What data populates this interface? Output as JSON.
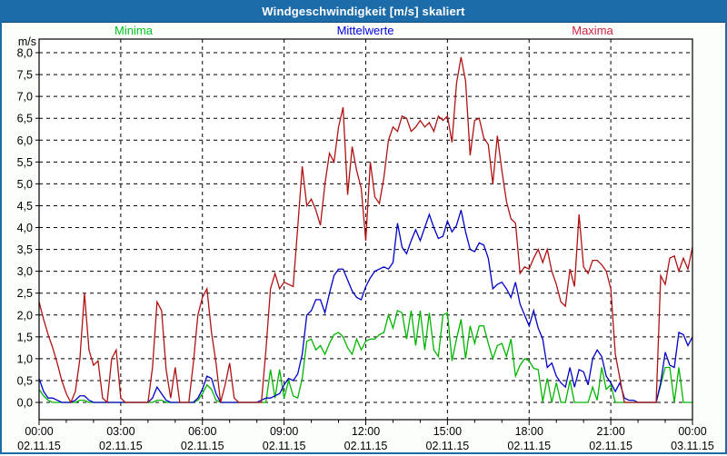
{
  "window": {
    "title": "Windgeschwindigkeit [m/s] skaliert"
  },
  "legend": [
    {
      "label": "Minima",
      "color": "#00c322"
    },
    {
      "label": "Mittelwerte",
      "color": "#0000e0"
    },
    {
      "label": "Maxima",
      "color": "#cc2244"
    }
  ],
  "chart_data": {
    "type": "line",
    "title": "Windgeschwindigkeit [m/s] skaliert",
    "ylabel": "m/s",
    "ylim": [
      -0.4,
      8.3
    ],
    "xlim_hours": [
      0,
      24
    ],
    "grid": "dashed",
    "legend_position": "top",
    "y_ticks": [
      {
        "value": 8.0,
        "label": "8,0"
      },
      {
        "value": 7.5,
        "label": "7,5"
      },
      {
        "value": 7.0,
        "label": "7,0"
      },
      {
        "value": 6.5,
        "label": "6,5"
      },
      {
        "value": 6.0,
        "label": "6,0"
      },
      {
        "value": 5.5,
        "label": "5,5"
      },
      {
        "value": 5.0,
        "label": "5,0"
      },
      {
        "value": 4.5,
        "label": "4,5"
      },
      {
        "value": 4.0,
        "label": "4,0"
      },
      {
        "value": 3.5,
        "label": "3,5"
      },
      {
        "value": 3.0,
        "label": "3,0"
      },
      {
        "value": 2.5,
        "label": "2,5"
      },
      {
        "value": 2.0,
        "label": "2,0"
      },
      {
        "value": 1.5,
        "label": "1,5"
      },
      {
        "value": 1.0,
        "label": "1,0"
      },
      {
        "value": 0.5,
        "label": "0,5"
      },
      {
        "value": 0.0,
        "label": "0,0"
      }
    ],
    "x_ticks": [
      {
        "hour": 0,
        "time": "00:00",
        "date": "02.11.15"
      },
      {
        "hour": 3,
        "time": "03:00",
        "date": "02.11.15"
      },
      {
        "hour": 6,
        "time": "06:00",
        "date": "02.11.15"
      },
      {
        "hour": 9,
        "time": "09:00",
        "date": "02.11.15"
      },
      {
        "hour": 12,
        "time": "12:00",
        "date": "02.11.15"
      },
      {
        "hour": 15,
        "time": "15:00",
        "date": "02.11.15"
      },
      {
        "hour": 18,
        "time": "18:00",
        "date": "02.11.15"
      },
      {
        "hour": 21,
        "time": "21:00",
        "date": "02.11.15"
      },
      {
        "hour": 24,
        "time": "00:00",
        "date": "03.11.15"
      }
    ],
    "x_minor_tick_hours": 1,
    "x_major_tick_hours": 3,
    "x_step_minutes": 10,
    "series": [
      {
        "name": "Minima",
        "color": "#00b400",
        "values": [
          0.3,
          0.15,
          0.05,
          0,
          0,
          0,
          0,
          0,
          0,
          0.05,
          0.05,
          0,
          0,
          0,
          0,
          0,
          0,
          0,
          0,
          0,
          0,
          0,
          0,
          0,
          0,
          0,
          0.05,
          0.05,
          0,
          0,
          0,
          0,
          0,
          0,
          0,
          0.05,
          0.2,
          0.4,
          0.3,
          0.05,
          0,
          0,
          0,
          0,
          0,
          0,
          0,
          0,
          0,
          0,
          0,
          0.75,
          0.1,
          0.75,
          0.1,
          0.5,
          0.15,
          0.1,
          0.55,
          1.4,
          1.45,
          1.2,
          1.3,
          1.1,
          1.35,
          1.55,
          1.6,
          1.5,
          1.25,
          1.1,
          1.45,
          1.2,
          1.4,
          1.45,
          1.45,
          1.55,
          1.6,
          2.0,
          1.7,
          2.1,
          2.05,
          1.45,
          2.1,
          1.3,
          2.1,
          1.2,
          2.05,
          1.2,
          1.05,
          2.0,
          2.05,
          0.95,
          1.45,
          1.9,
          1.0,
          1.75,
          1.35,
          1.75,
          1.75,
          1.35,
          1.0,
          1.3,
          1.35,
          1.05,
          1.45,
          0.6,
          0.85,
          1.0,
          0.95,
          0.78,
          0.75,
          0.02,
          0.55,
          0,
          0.45,
          0,
          0,
          0.5,
          0,
          0,
          0,
          0,
          0.35,
          0.05,
          0.8,
          0.3,
          0.4,
          0,
          0,
          0,
          0,
          0,
          0,
          0,
          0,
          0,
          0,
          0.4,
          0.8,
          0.8,
          0,
          0.8,
          0,
          0,
          0
        ]
      },
      {
        "name": "Mittelwerte",
        "color": "#0000c8",
        "values": [
          0.55,
          0.25,
          0.1,
          0.1,
          0.05,
          0,
          0,
          0,
          0.05,
          0.15,
          0.15,
          0.05,
          0,
          0,
          0,
          0,
          0,
          0,
          0,
          0,
          0,
          0,
          0,
          0,
          0,
          0.1,
          0.35,
          0.2,
          0.05,
          0,
          0,
          0,
          0,
          0,
          0,
          0.1,
          0.3,
          0.6,
          0.55,
          0.2,
          0,
          0,
          0,
          0,
          0,
          0,
          0,
          0,
          0,
          0.05,
          0.1,
          0.1,
          0.15,
          0.2,
          0.4,
          0.55,
          0.5,
          0.65,
          1.1,
          2.0,
          2.1,
          2.35,
          2.35,
          2.05,
          2.5,
          2.9,
          3.05,
          3.05,
          2.8,
          2.55,
          2.4,
          2.35,
          2.65,
          2.85,
          3.0,
          3.05,
          3.1,
          3.05,
          3.2,
          4.1,
          3.55,
          3.4,
          3.7,
          3.95,
          3.7,
          4.0,
          4.3,
          4.0,
          3.75,
          3.8,
          4.15,
          3.9,
          4.05,
          4.4,
          3.9,
          3.5,
          3.45,
          3.65,
          3.6,
          3.3,
          2.6,
          2.7,
          2.75,
          2.6,
          2.4,
          2.75,
          2.25,
          2.0,
          1.75,
          2.1,
          1.7,
          1.45,
          0.8,
          0.9,
          0.6,
          0.45,
          0.35,
          0.8,
          0.35,
          0.75,
          0.7,
          0.4,
          1.0,
          1.2,
          1.05,
          0.6,
          0.45,
          0.25,
          0.45,
          0.1,
          0.05,
          0.05,
          0,
          0,
          0,
          0,
          0,
          0.45,
          1.15,
          0.85,
          0.8,
          1.6,
          1.55,
          1.3,
          1.5
        ]
      },
      {
        "name": "Maxima",
        "color": "#b01212",
        "values": [
          2.3,
          1.9,
          1.55,
          1.25,
          0.9,
          0.5,
          0.2,
          0,
          0.25,
          1.0,
          2.5,
          1.2,
          0.85,
          0.95,
          0.1,
          0,
          1.0,
          1.2,
          0.1,
          0,
          0,
          0,
          0,
          0,
          0,
          0.8,
          2.3,
          2.1,
          0.75,
          0.1,
          0.8,
          0,
          0,
          0,
          0.9,
          2.0,
          2.4,
          2.6,
          1.6,
          0.9,
          0,
          0.4,
          0.9,
          0.1,
          0,
          0,
          0,
          0,
          0,
          0,
          1.2,
          2.6,
          2.95,
          2.6,
          2.75,
          2.7,
          2.65,
          4.0,
          5.4,
          4.5,
          4.65,
          4.4,
          4.05,
          5.0,
          5.7,
          5.5,
          6.3,
          6.75,
          4.75,
          5.85,
          5.3,
          4.9,
          3.7,
          5.5,
          4.7,
          4.55,
          5.15,
          6.0,
          6.3,
          6.2,
          6.55,
          6.5,
          6.2,
          6.3,
          6.45,
          6.3,
          6.4,
          6.2,
          6.55,
          6.45,
          6.55,
          5.95,
          7.3,
          7.9,
          7.35,
          5.65,
          6.45,
          6.5,
          6.05,
          5.9,
          5.0,
          6.1,
          5.3,
          4.6,
          4.2,
          4.1,
          2.95,
          3.1,
          3.05,
          3.3,
          3.5,
          3.2,
          3.5,
          3.0,
          2.7,
          2.3,
          2.2,
          3.05,
          2.65,
          4.3,
          3.1,
          2.95,
          3.25,
          3.25,
          3.15,
          3.0,
          2.6,
          1.1,
          0.55,
          0,
          0,
          0,
          0,
          0,
          0,
          0,
          0,
          2.9,
          2.7,
          3.3,
          3.35,
          3.0,
          3.3,
          3.05,
          3.55
        ]
      }
    ]
  }
}
